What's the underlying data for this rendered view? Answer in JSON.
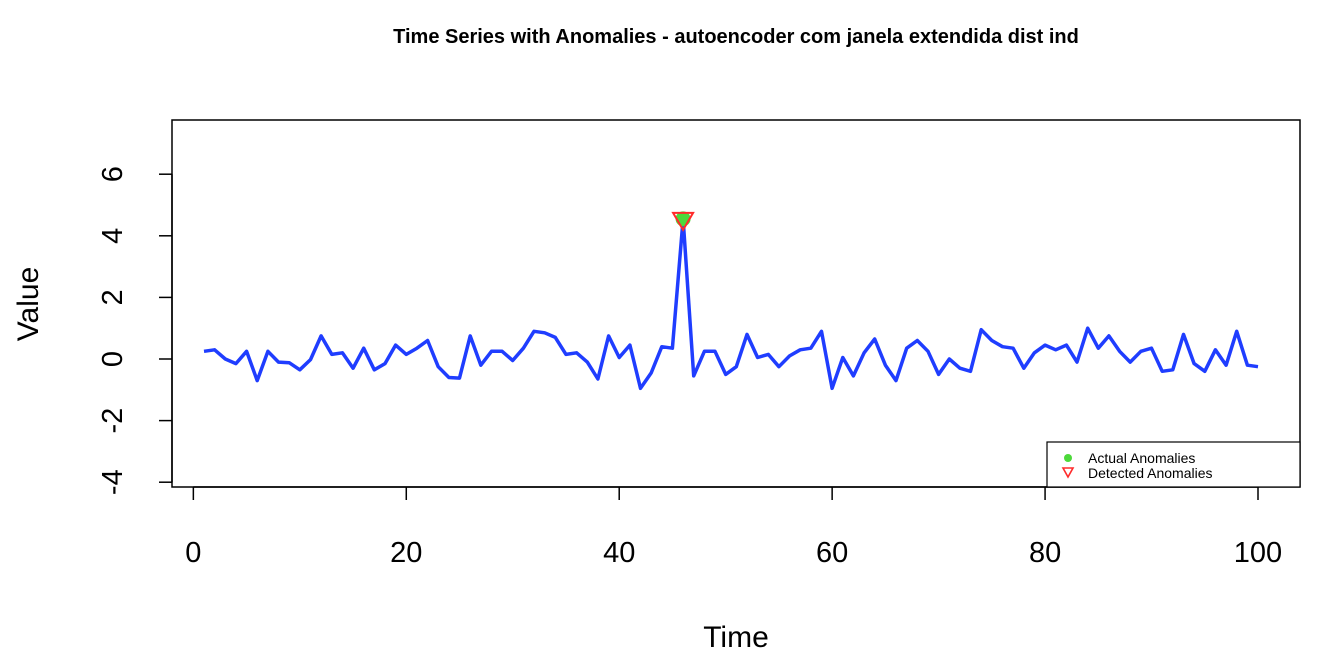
{
  "chart_data": {
    "type": "line",
    "title": "Time Series with Anomalies - autoencoder com janela extendida dist ind",
    "xlabel": "Time",
    "ylabel": "Value",
    "xlim": [
      1,
      100
    ],
    "ylim": [
      -4,
      7
    ],
    "x_ticks": [
      0,
      20,
      40,
      60,
      80,
      100
    ],
    "y_ticks": [
      -4,
      -2,
      0,
      2,
      4,
      6
    ],
    "grid": false,
    "legend_position": "bottom-right",
    "series": [
      {
        "type": "line",
        "color": "#1f3dff",
        "x": [
          1,
          2,
          3,
          4,
          5,
          6,
          7,
          8,
          9,
          10,
          11,
          12,
          13,
          14,
          15,
          16,
          17,
          18,
          19,
          20,
          21,
          22,
          23,
          24,
          25,
          26,
          27,
          28,
          29,
          30,
          31,
          32,
          33,
          34,
          35,
          36,
          37,
          38,
          39,
          40,
          41,
          42,
          43,
          44,
          45,
          46,
          47,
          48,
          49,
          50,
          51,
          52,
          53,
          54,
          55,
          56,
          57,
          58,
          59,
          60,
          61,
          62,
          63,
          64,
          65,
          66,
          67,
          68,
          69,
          70,
          71,
          72,
          73,
          74,
          75,
          76,
          77,
          78,
          79,
          80,
          81,
          82,
          83,
          84,
          85,
          86,
          87,
          88,
          89,
          90,
          91,
          92,
          93,
          94,
          95,
          96,
          97,
          98,
          99,
          100
        ],
        "values": [
          0.25,
          0.3,
          0.0,
          -0.15,
          0.25,
          -0.7,
          0.25,
          -0.1,
          -0.12,
          -0.35,
          -0.02,
          0.75,
          0.15,
          0.2,
          -0.3,
          0.35,
          -0.35,
          -0.15,
          0.45,
          0.15,
          0.35,
          0.6,
          -0.25,
          -0.6,
          -0.62,
          0.75,
          -0.2,
          0.25,
          0.25,
          -0.05,
          0.35,
          0.9,
          0.85,
          0.7,
          0.15,
          0.2,
          -0.1,
          -0.65,
          0.75,
          0.05,
          0.45,
          -0.95,
          -0.45,
          0.4,
          0.35,
          4.55,
          -0.55,
          0.25,
          0.25,
          -0.5,
          -0.25,
          0.8,
          0.05,
          0.15,
          -0.25,
          0.1,
          0.3,
          0.35,
          0.9,
          -0.95,
          0.05,
          -0.55,
          0.2,
          0.65,
          -0.2,
          -0.7,
          0.35,
          0.6,
          0.25,
          -0.5,
          0.0,
          -0.3,
          -0.4,
          0.95,
          0.6,
          0.4,
          0.35,
          -0.3,
          0.2,
          0.45,
          0.3,
          0.45,
          -0.1,
          1.0,
          0.35,
          0.75,
          0.25,
          -0.1,
          0.25,
          0.35,
          -0.4,
          -0.35,
          0.8,
          -0.15,
          -0.4,
          0.3,
          -0.2,
          0.9,
          -0.2,
          -0.25
        ]
      },
      {
        "name": "Actual Anomalies",
        "type": "scatter",
        "marker": "circle",
        "color": "#4cd93a",
        "x": [
          46
        ],
        "values": [
          4.55
        ]
      },
      {
        "name": "Detected Anomalies",
        "type": "scatter",
        "marker": "triangle-down",
        "color": "#ff2a2a",
        "x": [
          46
        ],
        "values": [
          4.55
        ]
      }
    ]
  }
}
